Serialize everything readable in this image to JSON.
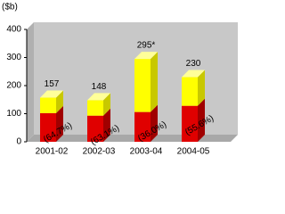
{
  "chart_data": {
    "type": "bar3d-stacked",
    "y_label": "($b)",
    "categories": [
      "2001-02",
      "2002-03",
      "2003-04",
      "2004-05"
    ],
    "series": [
      {
        "color": "#e00000",
        "side_color": "#a00000",
        "values": [
          102,
          93,
          106,
          128
        ]
      },
      {
        "color": "#ffff00",
        "side_color": "#c8c800",
        "top_color": "#ffff99",
        "values": [
          55,
          55,
          189,
          102
        ]
      }
    ],
    "totals": {
      "values": [
        157,
        148,
        295,
        230
      ],
      "value_labels": [
        "157",
        "148",
        "295*",
        "230"
      ]
    },
    "shares": {
      "values": [
        64.7,
        63.1,
        36.0,
        55.6
      ],
      "value_labels": [
        "(64.7%)",
        "(63.1%)",
        "(36.0%)",
        "(55.6%)"
      ]
    },
    "ylim": [
      0,
      400
    ],
    "yticks": [
      0,
      100,
      200,
      300,
      400
    ]
  }
}
